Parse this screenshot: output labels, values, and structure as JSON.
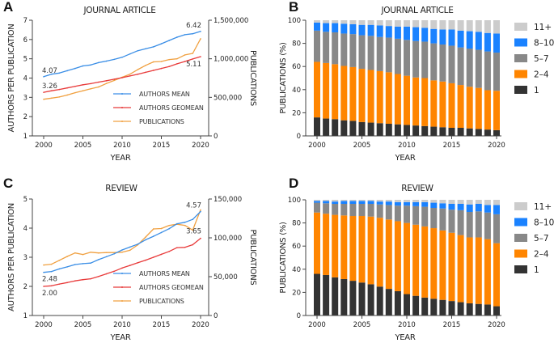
{
  "chart_data": [
    {
      "panel": "A",
      "type": "line",
      "title": "JOURNAL ARTICLE",
      "xlabel": "YEAR",
      "ylabel": "AUTHORS PER PUBLICATION",
      "y2label": "PUBLICATIONS",
      "xlim": [
        2000,
        2020
      ],
      "ylim": [
        1,
        7
      ],
      "y2lim": [
        0,
        1500000
      ],
      "x_ticks": [
        "2000",
        "2005",
        "2010",
        "2015",
        "2020"
      ],
      "y_ticks": [
        "1",
        "2",
        "3",
        "4",
        "5",
        "6",
        "7"
      ],
      "y2_ticks": [
        "0",
        "500,000",
        "1,000,000",
        "1,500,000"
      ],
      "x": [
        2000,
        2001,
        2002,
        2003,
        2004,
        2005,
        2006,
        2007,
        2008,
        2009,
        2010,
        2011,
        2012,
        2013,
        2014,
        2015,
        2016,
        2017,
        2018,
        2019,
        2020
      ],
      "series": [
        {
          "name": "AUTHORS MEAN",
          "axis": "left",
          "color": "#3a8ee6",
          "values": [
            4.07,
            4.2,
            4.26,
            4.38,
            4.5,
            4.63,
            4.68,
            4.8,
            4.88,
            4.97,
            5.08,
            5.25,
            5.42,
            5.52,
            5.62,
            5.78,
            5.95,
            6.12,
            6.25,
            6.3,
            6.42
          ]
        },
        {
          "name": "AUTHORS GEOMEAN",
          "axis": "left",
          "color": "#e83a3a",
          "values": [
            3.26,
            3.34,
            3.41,
            3.49,
            3.57,
            3.65,
            3.71,
            3.79,
            3.86,
            3.94,
            4.02,
            4.11,
            4.2,
            4.3,
            4.4,
            4.5,
            4.6,
            4.74,
            4.86,
            4.99,
            5.11
          ]
        },
        {
          "name": "PUBLICATIONS",
          "axis": "right",
          "color": "#f0a040",
          "values": [
            475000,
            490000,
            505000,
            530000,
            560000,
            585000,
            610000,
            635000,
            680000,
            720000,
            760000,
            800000,
            860000,
            915000,
            960000,
            965000,
            990000,
            1000000,
            1050000,
            1070000,
            1260000
          ]
        }
      ],
      "annotations": [
        {
          "text": "4.07",
          "x": 2000,
          "y": 4.07,
          "series": "AUTHORS MEAN"
        },
        {
          "text": "3.26",
          "x": 2000,
          "y": 3.26,
          "series": "AUTHORS GEOMEAN"
        },
        {
          "text": "6.42",
          "x": 2020,
          "y": 6.42,
          "series": "AUTHORS MEAN"
        },
        {
          "text": "5.11",
          "x": 2020,
          "y": 5.11,
          "series": "AUTHORS GEOMEAN"
        }
      ],
      "legend": "bottom-right"
    },
    {
      "panel": "B",
      "type": "bar",
      "stacked": true,
      "title": "JOURNAL ARTICLE",
      "xlabel": "YEAR",
      "ylabel": "PUBLICATIONS (%)",
      "ylim": [
        0,
        100
      ],
      "x_ticks": [
        "2000",
        "2005",
        "2010",
        "2015",
        "2020"
      ],
      "y_ticks": [
        "0",
        "20",
        "40",
        "60",
        "80",
        "100"
      ],
      "categories": [
        2000,
        2001,
        2002,
        2003,
        2004,
        2005,
        2006,
        2007,
        2008,
        2009,
        2010,
        2011,
        2012,
        2013,
        2014,
        2015,
        2016,
        2017,
        2018,
        2019,
        2020
      ],
      "series": [
        {
          "name": "1",
          "color": "#333333",
          "values": [
            16,
            15,
            14.5,
            13.5,
            13,
            12,
            11.5,
            11,
            10.5,
            10,
            9.5,
            9,
            8.5,
            8,
            7.5,
            7,
            7,
            6.5,
            6,
            5.5,
            5
          ]
        },
        {
          "name": "2–4",
          "color": "#ff8500",
          "values": [
            48,
            48,
            47.5,
            47,
            46.5,
            46,
            45.5,
            45,
            44.5,
            43.5,
            42.5,
            41.5,
            41.5,
            40,
            39.5,
            38.5,
            37,
            36,
            35.5,
            34,
            34
          ]
        },
        {
          "name": "5–7",
          "color": "#888888",
          "values": [
            27,
            27,
            27.5,
            28,
            28.5,
            29,
            29.5,
            29.5,
            30,
            30.5,
            31,
            31.5,
            31.5,
            32,
            32,
            32.5,
            32.5,
            33,
            33,
            33.5,
            33
          ]
        },
        {
          "name": "8–10",
          "color": "#1a82ff",
          "values": [
            7,
            7.5,
            8,
            8.5,
            8.5,
            9,
            9.5,
            10,
            10,
            10.5,
            11.5,
            12,
            12,
            12.5,
            13,
            14,
            14.5,
            15,
            15.5,
            16,
            16.5
          ]
        },
        {
          "name": "11+",
          "color": "#cccccc",
          "values": [
            2,
            2.5,
            2.5,
            3,
            3.5,
            4,
            4,
            4.5,
            5,
            5.5,
            5.5,
            6,
            6.5,
            7.5,
            8,
            8,
            9,
            9.5,
            10,
            11,
            11.5
          ]
        }
      ],
      "legend": "right"
    },
    {
      "panel": "C",
      "type": "line",
      "title": "REVIEW",
      "xlabel": "YEAR",
      "ylabel": "AUTHORS PER PUBLICATION",
      "y2label": "PUBLICATIONS",
      "xlim": [
        2000,
        2020
      ],
      "ylim": [
        1,
        5
      ],
      "y2lim": [
        0,
        150000
      ],
      "x_ticks": [
        "2000",
        "2005",
        "2010",
        "2015",
        "2020"
      ],
      "y_ticks": [
        "1",
        "2",
        "3",
        "4",
        "5"
      ],
      "y2_ticks": [
        "0",
        "50,000",
        "100,000",
        "150,000"
      ],
      "x": [
        2000,
        2001,
        2002,
        2003,
        2004,
        2005,
        2006,
        2007,
        2008,
        2009,
        2010,
        2011,
        2012,
        2013,
        2014,
        2015,
        2016,
        2017,
        2018,
        2019,
        2020
      ],
      "series": [
        {
          "name": "AUTHORS MEAN",
          "axis": "left",
          "color": "#3a8ee6",
          "values": [
            2.48,
            2.51,
            2.6,
            2.67,
            2.75,
            2.78,
            2.8,
            2.92,
            3.02,
            3.12,
            3.25,
            3.35,
            3.45,
            3.6,
            3.72,
            3.85,
            3.98,
            4.15,
            4.2,
            4.3,
            4.57
          ]
        },
        {
          "name": "AUTHORS GEOMEAN",
          "axis": "left",
          "color": "#e83a3a",
          "values": [
            2.0,
            2.02,
            2.08,
            2.13,
            2.19,
            2.23,
            2.26,
            2.34,
            2.43,
            2.52,
            2.63,
            2.72,
            2.81,
            2.9,
            3.0,
            3.1,
            3.2,
            3.33,
            3.34,
            3.43,
            3.65
          ]
        },
        {
          "name": "PUBLICATIONS",
          "axis": "right",
          "color": "#f0a040",
          "values": [
            65000,
            66000,
            71000,
            76000,
            80500,
            78500,
            81500,
            80500,
            81000,
            81000,
            81500,
            84000,
            91000,
            101000,
            111500,
            112000,
            116000,
            117500,
            116000,
            110000,
            136000
          ]
        }
      ],
      "annotations": [
        {
          "text": "2.48",
          "x": 2000,
          "y": 2.48,
          "series": "AUTHORS MEAN"
        },
        {
          "text": "2.00",
          "x": 2000,
          "y": 2.0,
          "series": "AUTHORS GEOMEAN"
        },
        {
          "text": "4.57",
          "x": 2020,
          "y": 4.57,
          "series": "AUTHORS MEAN"
        },
        {
          "text": "3.65",
          "x": 2020,
          "y": 3.65,
          "series": "AUTHORS GEOMEAN"
        }
      ],
      "legend": "bottom-right"
    },
    {
      "panel": "D",
      "type": "bar",
      "stacked": true,
      "title": "REVIEW",
      "xlabel": "YEAR",
      "ylabel": "PUBLICATIONS (%)",
      "ylim": [
        0,
        100
      ],
      "x_ticks": [
        "2000",
        "2005",
        "2010",
        "2015",
        "2020"
      ],
      "y_ticks": [
        "0",
        "20",
        "40",
        "60",
        "80",
        "100"
      ],
      "categories": [
        2000,
        2001,
        2002,
        2003,
        2004,
        2005,
        2006,
        2007,
        2008,
        2009,
        2010,
        2011,
        2012,
        2013,
        2014,
        2015,
        2016,
        2017,
        2018,
        2019,
        2020
      ],
      "series": [
        {
          "name": "1",
          "color": "#333333",
          "values": [
            36,
            35,
            33,
            31.5,
            30,
            28.5,
            27,
            25,
            23,
            21,
            18.5,
            17,
            15.5,
            14.5,
            13.5,
            12.5,
            11.5,
            10.5,
            10,
            9.5,
            8
          ]
        },
        {
          "name": "2–4",
          "color": "#ff8500",
          "values": [
            53,
            53,
            54,
            55,
            56,
            57.5,
            58.5,
            59.5,
            60,
            60.5,
            61.5,
            61.5,
            61.5,
            61,
            60,
            59,
            58,
            57,
            57.5,
            56.5,
            54.5
          ]
        },
        {
          "name": "5–7",
          "color": "#888888",
          "values": [
            8.5,
            9,
            9.5,
            10,
            10.5,
            10.5,
            11,
            11.5,
            12.5,
            13.5,
            15,
            16,
            17,
            17.5,
            19,
            20,
            21.5,
            22,
            22.5,
            23,
            25
          ]
        },
        {
          "name": "8–10",
          "color": "#1a82ff",
          "values": [
            1.5,
            2,
            2,
            2.5,
            2.5,
            2.5,
            2.5,
            2.5,
            3,
            3,
            3,
            3.5,
            4,
            4.5,
            4.5,
            5,
            5.5,
            6.5,
            6.5,
            6.5,
            8
          ]
        },
        {
          "name": "11+",
          "color": "#cccccc",
          "values": [
            1,
            1,
            1.5,
            1,
            1,
            1,
            1,
            1.5,
            1.5,
            2,
            2,
            2,
            2,
            2.5,
            3,
            3.5,
            3.5,
            4,
            3.5,
            4.5,
            4.5
          ]
        }
      ],
      "legend": "right"
    }
  ],
  "panels": {
    "A": {
      "letter": "A"
    },
    "B": {
      "letter": "B"
    },
    "C": {
      "letter": "C"
    },
    "D": {
      "letter": "D"
    }
  }
}
